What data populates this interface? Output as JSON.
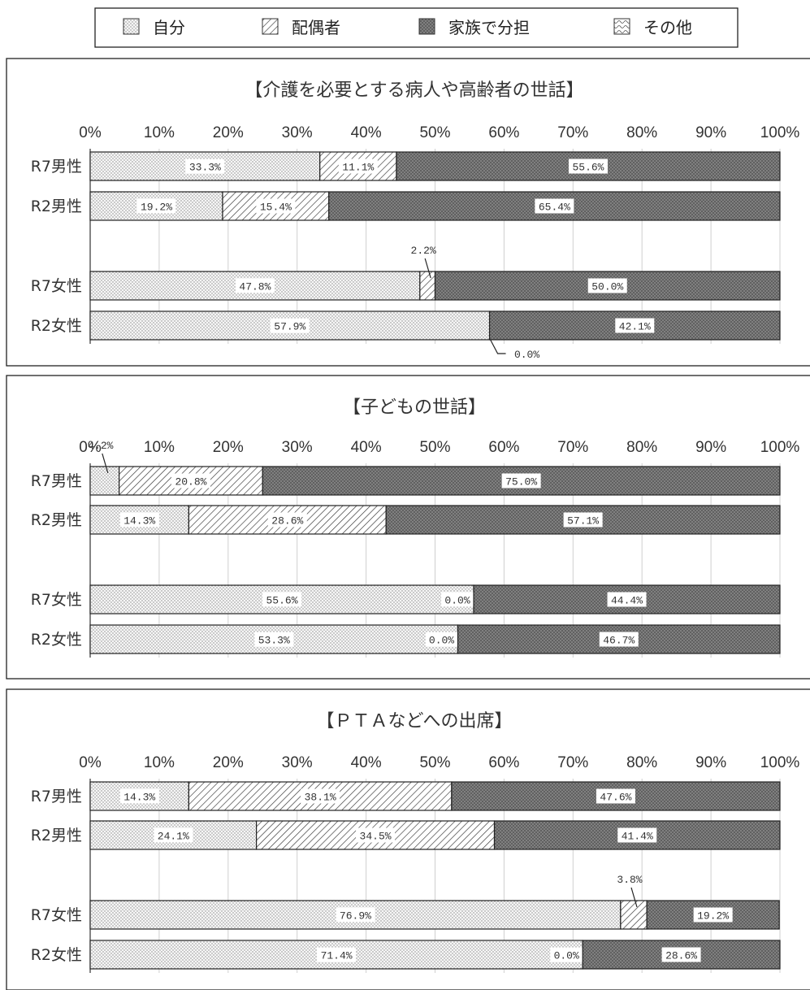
{
  "legend": {
    "items": [
      {
        "label": "自分",
        "pattern": "dots"
      },
      {
        "label": "配偶者",
        "pattern": "hatch"
      },
      {
        "label": "家族で分担",
        "pattern": "cross"
      },
      {
        "label": "その他",
        "pattern": "wave"
      }
    ]
  },
  "chart_data": [
    {
      "type": "bar",
      "orientation": "horizontal-stacked",
      "title": "【介護を必要とする病人や高齢者の世話】",
      "xlim": [
        0,
        100
      ],
      "xticks": [
        "0%",
        "10%",
        "20%",
        "30%",
        "40%",
        "50%",
        "60%",
        "70%",
        "80%",
        "90%",
        "100%"
      ],
      "rows": [
        {
          "label": "R7男性",
          "values": [
            33.3,
            11.1,
            55.6,
            0
          ],
          "labels": [
            "33.3%",
            "11.1%",
            "55.6%",
            ""
          ]
        },
        {
          "label": "R2男性",
          "values": [
            19.2,
            15.4,
            65.4,
            0
          ],
          "labels": [
            "19.2%",
            "15.4%",
            "65.4%",
            ""
          ]
        },
        {
          "label": "R7女性",
          "values": [
            47.8,
            2.2,
            50.0,
            0
          ],
          "labels": [
            "47.8%",
            "2.2%",
            "50.0%",
            ""
          ]
        },
        {
          "label": "R2女性",
          "values": [
            57.9,
            0.0,
            42.1,
            0
          ],
          "labels": [
            "57.9%",
            "0.0%",
            "42.1%",
            ""
          ]
        }
      ]
    },
    {
      "type": "bar",
      "orientation": "horizontal-stacked",
      "title": "【子どもの世話】",
      "xlim": [
        0,
        100
      ],
      "xticks": [
        "0%",
        "10%",
        "20%",
        "30%",
        "40%",
        "50%",
        "60%",
        "70%",
        "80%",
        "90%",
        "100%"
      ],
      "rows": [
        {
          "label": "R7男性",
          "values": [
            4.2,
            20.8,
            75.0,
            0
          ],
          "labels": [
            "4.2%",
            "20.8%",
            "75.0%",
            ""
          ]
        },
        {
          "label": "R2男性",
          "values": [
            14.3,
            28.6,
            57.1,
            0
          ],
          "labels": [
            "14.3%",
            "28.6%",
            "57.1%",
            ""
          ]
        },
        {
          "label": "R7女性",
          "values": [
            55.6,
            0.0,
            44.4,
            0
          ],
          "labels": [
            "55.6%",
            "0.0%",
            "44.4%",
            ""
          ]
        },
        {
          "label": "R2女性",
          "values": [
            53.3,
            0.0,
            46.7,
            0
          ],
          "labels": [
            "53.3%",
            "0.0%",
            "46.7%",
            ""
          ]
        }
      ]
    },
    {
      "type": "bar",
      "orientation": "horizontal-stacked",
      "title": "【ＰＴＡなどへの出席】",
      "xlim": [
        0,
        100
      ],
      "xticks": [
        "0%",
        "10%",
        "20%",
        "30%",
        "40%",
        "50%",
        "60%",
        "70%",
        "80%",
        "90%",
        "100%"
      ],
      "rows": [
        {
          "label": "R7男性",
          "values": [
            14.3,
            38.1,
            47.6,
            0
          ],
          "labels": [
            "14.3%",
            "38.1%",
            "47.6%",
            ""
          ]
        },
        {
          "label": "R2男性",
          "values": [
            24.1,
            34.5,
            41.4,
            0
          ],
          "labels": [
            "24.1%",
            "34.5%",
            "41.4%",
            ""
          ]
        },
        {
          "label": "R7女性",
          "values": [
            76.9,
            3.8,
            19.2,
            0
          ],
          "labels": [
            "76.9%",
            "3.8%",
            "19.2%",
            ""
          ]
        },
        {
          "label": "R2女性",
          "values": [
            71.4,
            0.0,
            28.6,
            0
          ],
          "labels": [
            "71.4%",
            "0.0%",
            "28.6%",
            ""
          ]
        }
      ]
    }
  ]
}
